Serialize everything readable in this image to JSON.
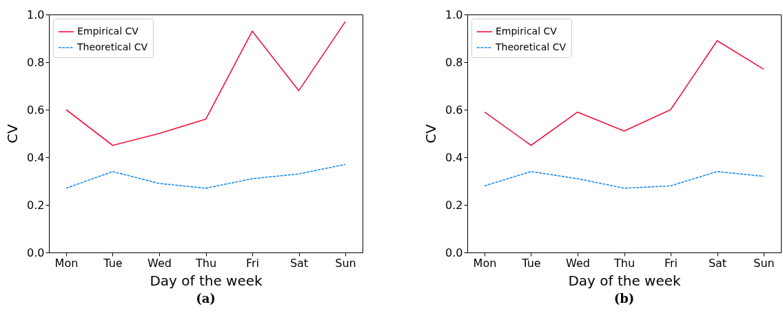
{
  "chart_data": [
    {
      "type": "line",
      "title": "(a)",
      "xlabel": "Day of the week",
      "ylabel": "CV",
      "categories": [
        "Mon",
        "Tue",
        "Wed",
        "Thu",
        "Fri",
        "Sat",
        "Sun"
      ],
      "ylim": [
        0,
        1
      ],
      "yticks": [
        {
          "value": 0,
          "label": "0.0"
        },
        {
          "value": 0.2,
          "label": "0.2"
        },
        {
          "value": 0.4,
          "label": "0.4"
        },
        {
          "value": 0.6,
          "label": "0.6"
        },
        {
          "value": 0.8,
          "label": "0.8"
        },
        {
          "value": 1,
          "label": "1.0"
        }
      ],
      "grid": false,
      "legend": "top left",
      "series": [
        {
          "name": "Empirical CV",
          "color": "#f0143c",
          "line_style": "solid",
          "values": [
            0.6,
            0.45,
            0.5,
            0.56,
            0.93,
            0.68,
            0.97
          ]
        },
        {
          "name": "Theoretical CV",
          "color": "#1a8cf0",
          "line_style": "dashed",
          "values": [
            0.27,
            0.34,
            0.29,
            0.27,
            0.31,
            0.33,
            0.37
          ]
        }
      ]
    },
    {
      "type": "line",
      "title": "(b)",
      "xlabel": "Day of the week",
      "ylabel": "CV",
      "categories": [
        "Mon",
        "Tue",
        "Wed",
        "Thu",
        "Fri",
        "Sat",
        "Sun"
      ],
      "ylim": [
        0,
        1
      ],
      "yticks": [
        {
          "value": 0,
          "label": "0.0"
        },
        {
          "value": 0.2,
          "label": "0.2"
        },
        {
          "value": 0.4,
          "label": "0.4"
        },
        {
          "value": 0.6,
          "label": "0.6"
        },
        {
          "value": 0.8,
          "label": "0.8"
        },
        {
          "value": 1,
          "label": "1.0"
        }
      ],
      "grid": false,
      "legend": "top left",
      "series": [
        {
          "name": "Empirical CV",
          "color": "#f0143c",
          "line_style": "solid",
          "values": [
            0.59,
            0.45,
            0.59,
            0.51,
            0.6,
            0.89,
            0.77
          ]
        },
        {
          "name": "Theoretical CV",
          "color": "#1a8cf0",
          "line_style": "dashed",
          "values": [
            0.28,
            0.34,
            0.31,
            0.27,
            0.28,
            0.34,
            0.32
          ]
        }
      ]
    }
  ]
}
